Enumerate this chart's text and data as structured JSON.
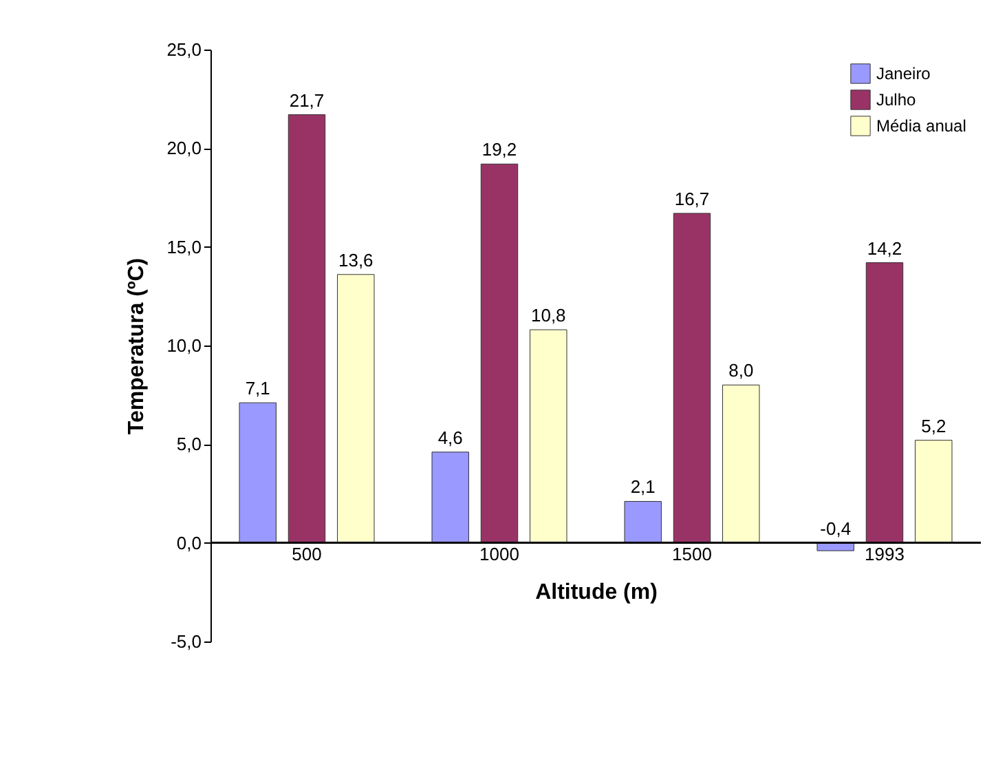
{
  "chart_data": {
    "type": "bar",
    "xlabel": "Altitude (m)",
    "ylabel": "Temperatura (ºC)",
    "categories": [
      "500",
      "1000",
      "1500",
      "1993"
    ],
    "series": [
      {
        "name": "Janeiro",
        "color": "#9999ff",
        "values": [
          7.1,
          4.6,
          2.1,
          -0.4
        ],
        "value_labels": [
          "7,1",
          "4,6",
          "2,1",
          "-0,4"
        ]
      },
      {
        "name": "Julho",
        "color": "#993366",
        "values": [
          21.7,
          19.2,
          16.7,
          14.2
        ],
        "value_labels": [
          "21,7",
          "19,2",
          "16,7",
          "14,2"
        ]
      },
      {
        "name": "Média anual",
        "color": "#ffffcc",
        "values": [
          13.6,
          10.8,
          8.0,
          5.2
        ],
        "value_labels": [
          "13,6",
          "10,8",
          "8,0",
          "5,2"
        ]
      }
    ],
    "ylim": [
      -5,
      25
    ],
    "yticks": [
      {
        "value": -5,
        "label": "-5,0"
      },
      {
        "value": 0,
        "label": "0,0"
      },
      {
        "value": 5,
        "label": "5,0"
      },
      {
        "value": 10,
        "label": "10,0"
      },
      {
        "value": 15,
        "label": "15,0"
      },
      {
        "value": 20,
        "label": "20,0"
      },
      {
        "value": 25,
        "label": "25,0"
      }
    ],
    "grid": false,
    "legend": "top right"
  }
}
